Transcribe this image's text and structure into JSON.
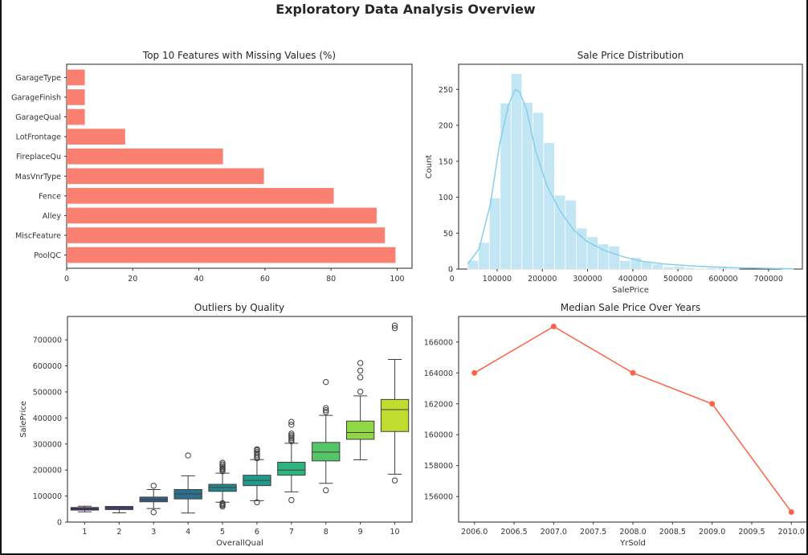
{
  "figure_title": "Exploratory Data Analysis Overview",
  "chart_data": [
    {
      "type": "bar",
      "orientation": "horizontal",
      "title": "Top 10 Features with Missing Values (%)",
      "xlabel": "",
      "ylabel": "",
      "categories": [
        "GarageType",
        "GarageFinish",
        "GarageQual",
        "LotFrontage",
        "FireplaceQu",
        "MasVnrType",
        "Fence",
        "Alley",
        "MiscFeature",
        "PoolQC"
      ],
      "values": [
        5.5,
        5.5,
        5.5,
        17.7,
        47.3,
        59.7,
        80.8,
        93.8,
        96.3,
        99.5
      ],
      "xlim": [
        0,
        104.5
      ],
      "xticks": [
        "0",
        "20",
        "40",
        "60",
        "80",
        "100"
      ],
      "color": "#fa8072",
      "grid": false
    },
    {
      "type": "histogram",
      "title": "Sale Price Distribution",
      "xlabel": "SalePrice",
      "ylabel": "Count",
      "bin_start": 34900,
      "bin_width": 24000,
      "counts": [
        12,
        37,
        99,
        231,
        272,
        232,
        218,
        176,
        103,
        96,
        57,
        45,
        35,
        32,
        12,
        16,
        10,
        7,
        3,
        4,
        2,
        1,
        2,
        2,
        1,
        0,
        0,
        0,
        0,
        1
      ],
      "kde": [
        [
          34900,
          7
        ],
        [
          60000,
          28
        ],
        [
          85000,
          90
        ],
        [
          105000,
          172
        ],
        [
          125000,
          228
        ],
        [
          140000,
          250
        ],
        [
          150000,
          246
        ],
        [
          165000,
          222
        ],
        [
          185000,
          165
        ],
        [
          210000,
          116
        ],
        [
          240000,
          80
        ],
        [
          270000,
          54
        ],
        [
          300000,
          38
        ],
        [
          340000,
          25
        ],
        [
          380000,
          17
        ],
        [
          420000,
          11
        ],
        [
          470000,
          7
        ],
        [
          540000,
          4
        ],
        [
          620000,
          2
        ],
        [
          700000,
          1
        ],
        [
          755000,
          0.5
        ]
      ],
      "xlim": [
        14900,
        775000
      ],
      "ylim": [
        0,
        285
      ],
      "xticks": [
        "0",
        "100000",
        "200000",
        "300000",
        "400000",
        "500000",
        "600000",
        "700000"
      ],
      "yticks": [
        "0",
        "50",
        "100",
        "150",
        "200",
        "250"
      ],
      "color": "#87ceeb",
      "grid": false
    },
    {
      "type": "box",
      "title": "Outliers by Quality",
      "xlabel": "OverallQual",
      "ylabel": "SalePrice",
      "categories": [
        "1",
        "2",
        "3",
        "4",
        "5",
        "6",
        "7",
        "8",
        "9",
        "10"
      ],
      "boxes": [
        {
          "q1": 46000,
          "median": 51000,
          "q3": 56000,
          "whislo": 39300,
          "whishi": 61000,
          "fliers": []
        },
        {
          "q1": 48000,
          "median": 55000,
          "q3": 60000,
          "whislo": 35300,
          "whishi": 60000,
          "fliers": []
        },
        {
          "q1": 78000,
          "median": 86000,
          "q3": 96000,
          "whislo": 52000,
          "whishi": 125000,
          "fliers": [
            37900,
            139600
          ]
        },
        {
          "q1": 89000,
          "median": 108000,
          "q3": 125000,
          "whislo": 34900,
          "whishi": 178000,
          "fliers": [
            256000
          ]
        },
        {
          "q1": 118000,
          "median": 133000,
          "q3": 145000,
          "whislo": 76500,
          "whishi": 188000,
          "fliers": [
            60000,
            64500,
            68400,
            72500,
            195000,
            201000,
            205000,
            210000,
            216000,
            222000,
            228000
          ]
        },
        {
          "q1": 140000,
          "median": 160000,
          "q3": 180000,
          "whislo": 82000,
          "whishi": 240000,
          "fliers": [
            76000,
            245000,
            251000,
            257000,
            264000,
            270000,
            276000,
            280000
          ]
        },
        {
          "q1": 180000,
          "median": 200000,
          "q3": 230000,
          "whislo": 116000,
          "whishi": 303000,
          "fliers": [
            84500,
            310000,
            316000,
            322000,
            328000,
            334000,
            340000,
            374000,
            385000
          ]
        },
        {
          "q1": 235000,
          "median": 269000,
          "q3": 306000,
          "whislo": 149000,
          "whishi": 410000,
          "fliers": [
            122000,
            423000,
            430000,
            438000,
            538000
          ]
        },
        {
          "q1": 318000,
          "median": 344000,
          "q3": 388000,
          "whislo": 239000,
          "whishi": 485000,
          "fliers": [
            501000,
            556000,
            582000,
            611000
          ]
        },
        {
          "q1": 348000,
          "median": 432000,
          "q3": 471000,
          "whislo": 184000,
          "whishi": 625000,
          "fliers": [
            160000,
            745000,
            755000
          ]
        }
      ],
      "ylim": [
        0,
        790000
      ],
      "yticks": [
        "0",
        "100000",
        "200000",
        "300000",
        "400000",
        "500000",
        "600000",
        "700000"
      ],
      "colors": [
        "#482576",
        "#414287",
        "#35608d",
        "#2e6e8e",
        "#25858e",
        "#1f9a8a",
        "#2eb37c",
        "#55c667",
        "#8fd744",
        "#c0dd2f"
      ],
      "grid": false
    },
    {
      "type": "line",
      "title": "Median Sale Price Over Years",
      "xlabel": "YrSold",
      "ylabel": "",
      "x": [
        2006,
        2007,
        2008,
        2009,
        2010
      ],
      "y": [
        164000,
        167000,
        164000,
        162000,
        155000
      ],
      "xlim": [
        2005.8,
        2010.2
      ],
      "ylim": [
        154350,
        167650
      ],
      "xticks": [
        "2006.0",
        "2006.5",
        "2007.0",
        "2007.5",
        "2008.0",
        "2008.5",
        "2009.0",
        "2009.5",
        "2010.0"
      ],
      "yticks": [
        "156000",
        "158000",
        "160000",
        "162000",
        "164000",
        "166000"
      ],
      "color": "#ff6347",
      "marker": "o",
      "grid": false
    }
  ]
}
